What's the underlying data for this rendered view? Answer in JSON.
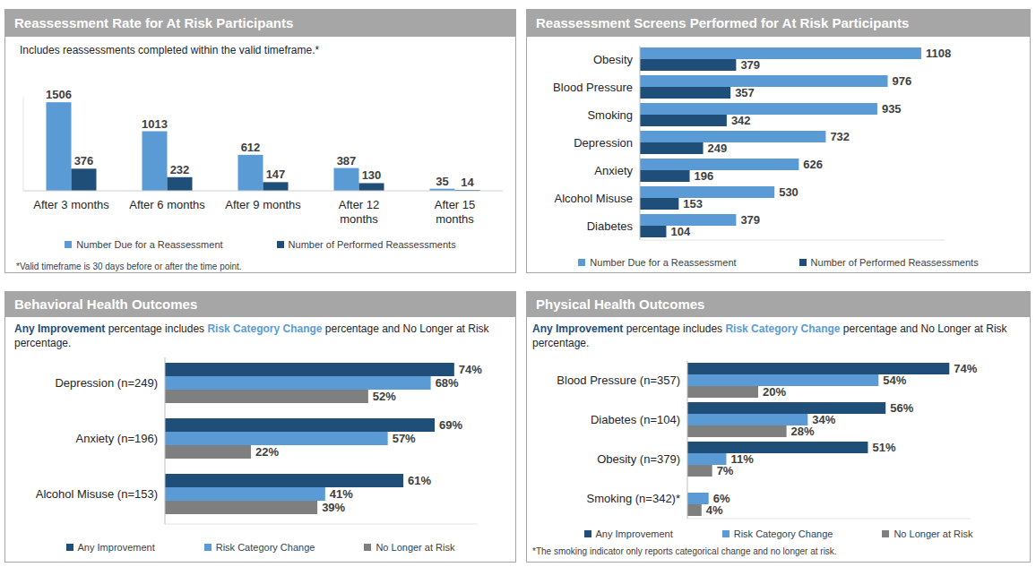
{
  "chart_data": [
    {
      "type": "bar",
      "title": "Reassessment Rate for At Risk Participants",
      "subtitle": "Includes reassessments completed within the valid timeframe.*",
      "footnote": "*Valid timeframe is 30 days before or after the time point.",
      "categories": [
        "After 3 months",
        "After 6 months",
        "After 9 months",
        "After 12 months",
        "After 15 months"
      ],
      "series": [
        {
          "name": "Number Due for a Reassessment",
          "color": "#5b9bd5",
          "values": [
            1506,
            1013,
            612,
            387,
            35
          ]
        },
        {
          "name": "Number of Performed Reassessments",
          "color": "#1f4e79",
          "values": [
            376,
            232,
            147,
            130,
            14
          ]
        }
      ],
      "ylim": [
        0,
        1600
      ],
      "data_labels": true,
      "tick_labels": "x",
      "legend": "bottom"
    },
    {
      "type": "bar",
      "orientation": "horizontal",
      "title": "Reassessment Screens Performed for At Risk Participants",
      "categories": [
        "Obesity",
        "Blood Pressure",
        "Smoking",
        "Depression",
        "Anxiety",
        "Alcohol Misuse",
        "Diabetes"
      ],
      "series": [
        {
          "name": "Number Due for a Reassessment",
          "color": "#5b9bd5",
          "values": [
            1108,
            976,
            935,
            732,
            626,
            530,
            379
          ]
        },
        {
          "name": "Number of Performed Reassessments",
          "color": "#1f4e79",
          "values": [
            379,
            357,
            342,
            249,
            196,
            153,
            104
          ]
        }
      ],
      "xlim": [
        0,
        1200
      ],
      "data_labels": true,
      "tick_labels": "y",
      "legend": "bottom"
    },
    {
      "type": "bar",
      "orientation": "horizontal",
      "title": "Behavioral Health Outcomes",
      "subtitle": "Any Improvement percentage includes Risk Category Change percentage and No Longer at Risk percentage.",
      "categories": [
        "Depression (n=249)",
        "Anxiety (n=196)",
        "Alcohol Misuse (n=153)"
      ],
      "series": [
        {
          "name": "Any Improvement",
          "color": "#1f4e79",
          "values": [
            74,
            69,
            61
          ],
          "value_labels": [
            "74%",
            "69%",
            "61%"
          ]
        },
        {
          "name": "Risk Category Change",
          "color": "#5b9bd5",
          "values": [
            68,
            57,
            41
          ],
          "value_labels": [
            "68%",
            "57%",
            "41%"
          ]
        },
        {
          "name": "No Longer at Risk",
          "color": "#7f7f7f",
          "values": [
            52,
            22,
            39
          ],
          "value_labels": [
            "52%",
            "22%",
            "39%"
          ]
        }
      ],
      "xlim": [
        0,
        80
      ],
      "data_labels": true,
      "tick_labels": "y",
      "legend": "bottom"
    },
    {
      "type": "bar",
      "orientation": "horizontal",
      "title": "Physical Health Outcomes",
      "subtitle": "Any Improvement percentage includes Risk Category Change percentage and No Longer at Risk percentage.",
      "footnote": "*The smoking indicator only reports categorical change and no longer at risk.",
      "categories": [
        "Blood Pressure (n=357)",
        "Diabetes (n=104)",
        "Obesity (n=379)",
        "Smoking (n=342)*"
      ],
      "series": [
        {
          "name": "Any Improvement",
          "color": "#1f4e79",
          "values": [
            74,
            56,
            51,
            null
          ],
          "value_labels": [
            "74%",
            "56%",
            "51%",
            null
          ]
        },
        {
          "name": "Risk Category Change",
          "color": "#5b9bd5",
          "values": [
            54,
            34,
            11,
            6
          ],
          "value_labels": [
            "54%",
            "34%",
            "11%",
            "6%"
          ]
        },
        {
          "name": "No Longer at Risk",
          "color": "#7f7f7f",
          "values": [
            20,
            28,
            7,
            4
          ],
          "value_labels": [
            "20%",
            "28%",
            "7%",
            "4%"
          ]
        }
      ],
      "xlim": [
        0,
        80
      ],
      "data_labels": true,
      "tick_labels": "y",
      "legend": "bottom"
    }
  ]
}
